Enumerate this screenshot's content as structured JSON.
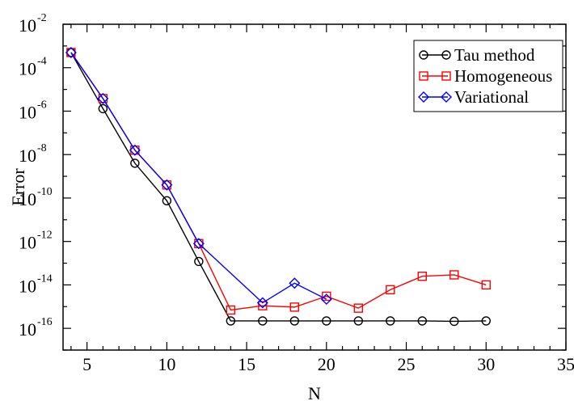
{
  "chart_data": {
    "type": "line",
    "title": "",
    "xlabel": "N",
    "ylabel": "Error",
    "xlim": [
      3.5,
      35
    ],
    "ylim_log10": [
      -17,
      -2
    ],
    "yscale": "log",
    "grid": false,
    "legend_position": "top-right",
    "x_ticks": [
      5,
      10,
      15,
      20,
      25,
      30,
      35
    ],
    "x_tick_labels": [
      "5",
      "10",
      "15",
      "20",
      "25",
      "30",
      "35"
    ],
    "y_ticks_log10": [
      -16,
      -14,
      -12,
      -10,
      -8,
      -6,
      -4,
      -2
    ],
    "y_tick_base": "10",
    "y_tick_exponents": [
      "-16",
      "-14",
      "-12",
      "-10",
      "-8",
      "-6",
      "-4",
      "-2"
    ],
    "series": [
      {
        "name": "Tau method",
        "color": "#000000",
        "marker": "circle",
        "x": [
          4,
          6,
          8,
          10,
          12,
          14,
          16,
          18,
          20,
          22,
          24,
          26,
          28,
          30
        ],
        "y": [
          0.0005,
          1.3e-06,
          4e-09,
          7.5e-11,
          1.2e-13,
          2.2e-16,
          2.2e-16,
          2.2e-16,
          2.2e-16,
          2.2e-16,
          2.2e-16,
          2.2e-16,
          2.1e-16,
          2.2e-16
        ]
      },
      {
        "name": "Homogeneous",
        "color": "#ff0000",
        "marker": "square",
        "x": [
          4,
          6,
          8,
          10,
          12,
          14,
          16,
          18,
          20,
          22,
          24,
          26,
          28,
          30
        ],
        "y": [
          0.0005,
          3.8e-06,
          1.6e-08,
          4e-10,
          8e-13,
          7e-16,
          1.1e-15,
          9.5e-16,
          3e-15,
          8.5e-16,
          6e-15,
          2.5e-14,
          2.9e-14,
          1e-14
        ]
      },
      {
        "name": "Variational",
        "color": "#0000ff",
        "marker": "diamond",
        "x": [
          4,
          6,
          8,
          10,
          12,
          16,
          18,
          20
        ],
        "y": [
          0.0005,
          3.8e-06,
          1.6e-08,
          4e-10,
          8e-13,
          1.5e-15,
          1.2e-14,
          2.2e-15
        ]
      }
    ]
  }
}
